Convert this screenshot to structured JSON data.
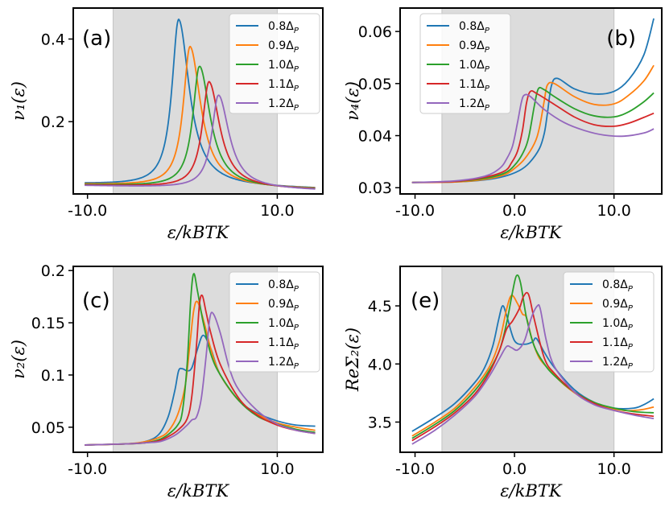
{
  "figure": {
    "background": "#ffffff",
    "shade_color": "#dcdcdc"
  },
  "colors": [
    "#1f77b4",
    "#ff7f0e",
    "#2ca02c",
    "#d62728",
    "#9467bd"
  ],
  "legend_labels": [
    {
      "base": "0.8Δ",
      "sub": "P"
    },
    {
      "base": "0.9Δ",
      "sub": "P"
    },
    {
      "base": "1.0Δ",
      "sub": "P"
    },
    {
      "base": "1.1Δ",
      "sub": "P"
    },
    {
      "base": "1.2Δ",
      "sub": "P"
    }
  ],
  "chart_data": [
    {
      "id": "a",
      "type": "line",
      "letter": "(a)",
      "ylabel": "ν₁(ε)",
      "xlabel": "ε/kBTK",
      "xlim": [
        -11.5,
        14.8
      ],
      "ylim": [
        0.025,
        0.475
      ],
      "xticks": [
        -10,
        10
      ],
      "xtick_labels": [
        "-10.0",
        "10.0"
      ],
      "yticks": [
        0.2,
        0.4
      ],
      "ytick_labels": [
        "0.2",
        "0.4"
      ],
      "shade": [
        -7.3,
        10
      ],
      "series": [
        {
          "name": "0.8ΔP",
          "peaks": [
            [
              -0.4,
              0.447,
              0.5,
              0.8
            ]
          ],
          "base": 0.044,
          "slope": -0.0005
        },
        {
          "name": "0.9ΔP",
          "peaks": [
            [
              0.8,
              0.382,
              0.5,
              0.8
            ]
          ],
          "base": 0.043,
          "slope": -0.0005
        },
        {
          "name": "1.0ΔP",
          "peaks": [
            [
              1.8,
              0.335,
              0.5,
              0.8
            ]
          ],
          "base": 0.042,
          "slope": -0.0005
        },
        {
          "name": "1.1ΔP",
          "peaks": [
            [
              2.8,
              0.298,
              0.5,
              0.8
            ]
          ],
          "base": 0.041,
          "slope": -0.0005
        },
        {
          "name": "1.2ΔP",
          "peaks": [
            [
              3.8,
              0.266,
              0.5,
              0.8
            ]
          ],
          "base": 0.04,
          "slope": -0.0005
        }
      ]
    },
    {
      "id": "b",
      "type": "line",
      "letter": "(b)",
      "ylabel": "ν₄(ε)",
      "xlabel": "ε/kBTK",
      "xlim": [
        -11.5,
        14.8
      ],
      "ylim": [
        0.0288,
        0.0645
      ],
      "xticks": [
        -10,
        0,
        10
      ],
      "xtick_labels": [
        "-10.0",
        "0.0",
        "10.0"
      ],
      "yticks": [
        0.03,
        0.04,
        0.05,
        0.06
      ],
      "ytick_labels": [
        "0.03",
        "0.04",
        "0.05",
        "0.06"
      ],
      "shade": [
        -7.3,
        10
      ],
      "series": [
        {
          "name": "0.8ΔP",
          "x": [
            -10.3,
            -6,
            -3,
            -1,
            0.5,
            1.5,
            2.5,
            3,
            3.3,
            3.7,
            4.3,
            6,
            8,
            10,
            11.5,
            13,
            14
          ],
          "y": [
            0.031,
            0.0311,
            0.0315,
            0.0322,
            0.0333,
            0.0348,
            0.0375,
            0.0405,
            0.0442,
            0.0495,
            0.051,
            0.049,
            0.048,
            0.0485,
            0.0508,
            0.0555,
            0.0625
          ]
        },
        {
          "name": "0.9ΔP",
          "x": [
            -10.3,
            -6,
            -3,
            -1,
            0,
            1,
            2,
            2.5,
            3,
            3.3,
            4,
            6,
            8,
            10,
            11.5,
            13,
            14
          ],
          "y": [
            0.031,
            0.0311,
            0.0316,
            0.0325,
            0.0337,
            0.0355,
            0.0385,
            0.0415,
            0.0468,
            0.0497,
            0.05,
            0.0475,
            0.046,
            0.0461,
            0.0478,
            0.0505,
            0.0535
          ]
        },
        {
          "name": "1.0ΔP",
          "x": [
            -10.3,
            -6,
            -3,
            -1,
            0,
            0.8,
            1.4,
            2,
            2.4,
            3,
            4,
            6,
            8,
            10,
            11.5,
            13,
            14
          ],
          "y": [
            0.031,
            0.0312,
            0.0318,
            0.0328,
            0.0343,
            0.0365,
            0.0395,
            0.0458,
            0.049,
            0.0488,
            0.0475,
            0.0452,
            0.0438,
            0.0436,
            0.0446,
            0.0465,
            0.0482
          ]
        },
        {
          "name": "1.1ΔP",
          "x": [
            -10.3,
            -6,
            -3,
            -1,
            -0.3,
            0.3,
            0.8,
            1.2,
            1.6,
            2.3,
            4,
            6,
            8,
            10,
            11.5,
            13,
            14
          ],
          "y": [
            0.031,
            0.0312,
            0.032,
            0.0332,
            0.0348,
            0.037,
            0.041,
            0.0462,
            0.0485,
            0.048,
            0.046,
            0.0436,
            0.0421,
            0.0418,
            0.0424,
            0.0435,
            0.0443
          ]
        },
        {
          "name": "1.2ΔP",
          "x": [
            -10.3,
            -6,
            -3,
            -1.5,
            -0.8,
            -0.2,
            0.3,
            0.7,
            1,
            1.6,
            3,
            5,
            7,
            9,
            11,
            13,
            14
          ],
          "y": [
            0.031,
            0.0313,
            0.0322,
            0.0337,
            0.0355,
            0.038,
            0.0425,
            0.0465,
            0.0478,
            0.0475,
            0.045,
            0.0425,
            0.041,
            0.0401,
            0.0399,
            0.0405,
            0.0413
          ]
        }
      ]
    },
    {
      "id": "c",
      "type": "line",
      "letter": "(c)",
      "ylabel": "ν₂(ε)",
      "xlabel": "ε/kBTK",
      "xlim": [
        -11.5,
        14.8
      ],
      "ylim": [
        0.026,
        0.204
      ],
      "xticks": [
        -10,
        10
      ],
      "xtick_labels": [
        "-10.0",
        "10.0"
      ],
      "yticks": [
        0.05,
        0.1,
        0.15,
        0.2
      ],
      "ytick_labels": [
        "0.05",
        "0.1",
        "0.15",
        "0.2"
      ],
      "shade": [
        -7.3,
        10
      ],
      "series": [
        {
          "name": "0.8ΔP",
          "x": [
            -10.3,
            -6,
            -4,
            -2.5,
            -1.5,
            -0.8,
            -0.4,
            0,
            0.5,
            1,
            1.6,
            2.2,
            3,
            4,
            6,
            8,
            10,
            12,
            14
          ],
          "y": [
            0.033,
            0.034,
            0.036,
            0.043,
            0.06,
            0.085,
            0.104,
            0.106,
            0.104,
            0.107,
            0.125,
            0.138,
            0.125,
            0.1,
            0.075,
            0.063,
            0.056,
            0.052,
            0.051
          ]
        },
        {
          "name": "0.9ΔP",
          "x": [
            -10.3,
            -6,
            -4,
            -2.5,
            -1.5,
            -0.5,
            0.3,
            0.8,
            1.2,
            1.6,
            2.3,
            3,
            4,
            6,
            8,
            10,
            12,
            14
          ],
          "y": [
            0.033,
            0.034,
            0.036,
            0.04,
            0.046,
            0.062,
            0.09,
            0.13,
            0.162,
            0.17,
            0.15,
            0.125,
            0.1,
            0.075,
            0.062,
            0.054,
            0.05,
            0.047
          ]
        },
        {
          "name": "1.0ΔP",
          "x": [
            -10.3,
            -6,
            -4,
            -2.5,
            -1.5,
            -0.5,
            0,
            0.5,
            0.9,
            1.2,
            1.6,
            2.2,
            3,
            4,
            6,
            8,
            10,
            12,
            14
          ],
          "y": [
            0.033,
            0.034,
            0.035,
            0.038,
            0.043,
            0.052,
            0.065,
            0.11,
            0.175,
            0.197,
            0.18,
            0.15,
            0.12,
            0.1,
            0.075,
            0.06,
            0.053,
            0.048,
            0.045
          ]
        },
        {
          "name": "1.1ΔP",
          "x": [
            -10.3,
            -6,
            -4,
            -2.5,
            -1.5,
            -0.5,
            0.5,
            1,
            1.5,
            1.8,
            2.1,
            2.5,
            3,
            4,
            6,
            8,
            10,
            12,
            14
          ],
          "y": [
            0.033,
            0.034,
            0.035,
            0.037,
            0.041,
            0.047,
            0.058,
            0.08,
            0.13,
            0.168,
            0.176,
            0.16,
            0.14,
            0.11,
            0.077,
            0.061,
            0.052,
            0.047,
            0.044
          ]
        },
        {
          "name": "1.2ΔP",
          "x": [
            -10.3,
            -6,
            -4,
            -2.5,
            -1.5,
            -0.5,
            0.5,
            1,
            1.5,
            2,
            2.5,
            2.9,
            3.3,
            4,
            5,
            6,
            8,
            10,
            12,
            14
          ],
          "y": [
            0.033,
            0.034,
            0.035,
            0.036,
            0.039,
            0.044,
            0.052,
            0.057,
            0.06,
            0.078,
            0.118,
            0.155,
            0.158,
            0.14,
            0.105,
            0.085,
            0.065,
            0.053,
            0.047,
            0.044
          ]
        }
      ]
    },
    {
      "id": "e",
      "type": "line",
      "letter": "(e)",
      "ylabel": "ReΣ₂(ε)",
      "xlabel": "ε/kBTK",
      "xlim": [
        -11.5,
        14.8
      ],
      "ylim": [
        3.24,
        4.84
      ],
      "xticks": [
        -10,
        0,
        10
      ],
      "xtick_labels": [
        "-10.0",
        "0.0",
        "10.0"
      ],
      "yticks": [
        3.5,
        4.0,
        4.5
      ],
      "ytick_labels": [
        "3.5",
        "4.0",
        "4.5"
      ],
      "shade": [
        -7.3,
        10
      ],
      "series": [
        {
          "name": "0.8ΔP",
          "x": [
            -10.3,
            -8,
            -6,
            -4,
            -3,
            -2.2,
            -1.6,
            -1.2,
            -0.8,
            0,
            1,
            1.8,
            2.2,
            3,
            4,
            6,
            8,
            10,
            12,
            13,
            14
          ],
          "y": [
            3.42,
            3.54,
            3.66,
            3.84,
            3.97,
            4.15,
            4.38,
            4.5,
            4.42,
            4.2,
            4.17,
            4.19,
            4.22,
            4.1,
            3.97,
            3.78,
            3.67,
            3.62,
            3.62,
            3.65,
            3.7
          ]
        },
        {
          "name": "0.9ΔP",
          "x": [
            -10.3,
            -8,
            -6,
            -4,
            -2.5,
            -1.5,
            -0.8,
            -0.3,
            0.3,
            0.8,
            1.2,
            1.8,
            2.5,
            3.5,
            5,
            7,
            9,
            11,
            12,
            13,
            14
          ],
          "y": [
            3.38,
            3.5,
            3.62,
            3.8,
            3.98,
            4.2,
            4.47,
            4.59,
            4.52,
            4.43,
            4.4,
            4.2,
            4.05,
            3.95,
            3.82,
            3.7,
            3.63,
            3.6,
            3.6,
            3.61,
            3.63
          ]
        },
        {
          "name": "1.0ΔP",
          "x": [
            -10.3,
            -8,
            -6,
            -4,
            -2.5,
            -1.5,
            -0.8,
            -0.2,
            0.2,
            0.6,
            1.2,
            2,
            3,
            4,
            6,
            8,
            10,
            12,
            14
          ],
          "y": [
            3.36,
            3.48,
            3.6,
            3.77,
            3.95,
            4.12,
            4.35,
            4.62,
            4.76,
            4.7,
            4.4,
            4.15,
            4,
            3.9,
            3.76,
            3.67,
            3.62,
            3.59,
            3.58
          ]
        },
        {
          "name": "1.1ΔP",
          "x": [
            -10.3,
            -8,
            -6,
            -4,
            -2.5,
            -1.5,
            -0.8,
            -0.2,
            0.5,
            0.9,
            1.4,
            2,
            3,
            4,
            6,
            8,
            10,
            12,
            14
          ],
          "y": [
            3.34,
            3.46,
            3.58,
            3.74,
            3.93,
            4.12,
            4.3,
            4.37,
            4.48,
            4.58,
            4.6,
            4.38,
            4.05,
            3.92,
            3.76,
            3.66,
            3.6,
            3.57,
            3.55
          ]
        },
        {
          "name": "1.2ΔP",
          "x": [
            -10.3,
            -8,
            -6,
            -4,
            -2.5,
            -1.5,
            -0.8,
            -0.3,
            0.3,
            1,
            1.7,
            2.3,
            2.6,
            3.2,
            4,
            6,
            8,
            10,
            12,
            14
          ],
          "y": [
            3.31,
            3.43,
            3.56,
            3.72,
            3.9,
            4.05,
            4.15,
            4.14,
            4.12,
            4.2,
            4.4,
            4.5,
            4.47,
            4.2,
            3.98,
            3.76,
            3.65,
            3.6,
            3.56,
            3.53
          ]
        }
      ]
    }
  ]
}
